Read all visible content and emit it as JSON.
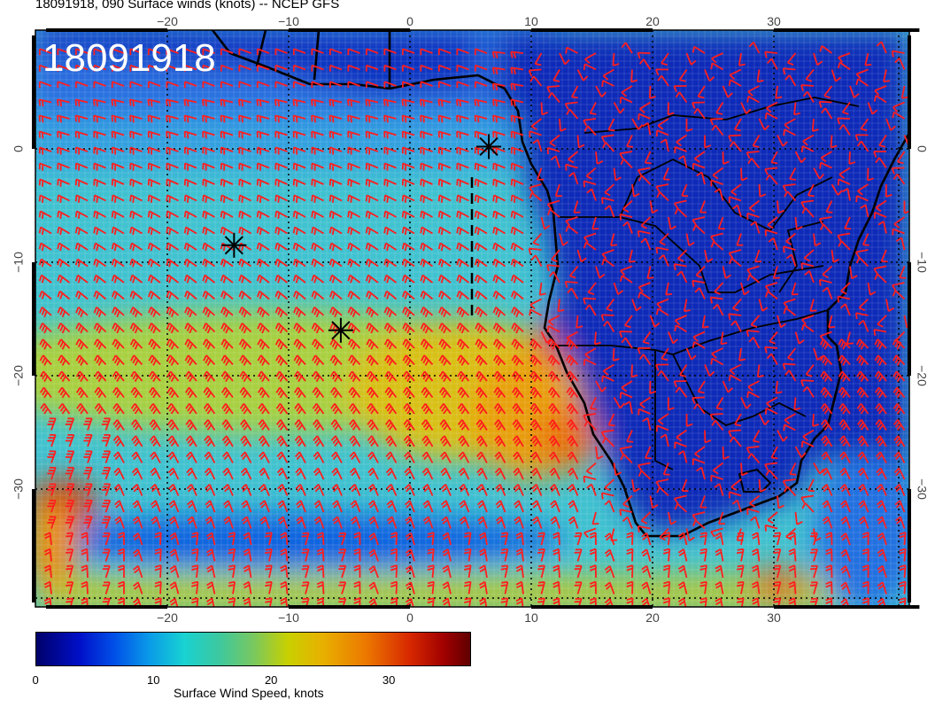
{
  "title": "18091918, 090 Surface winds (knots) -- NCEP GFS",
  "stamp": "18091918",
  "lon_ticks": [
    "−20",
    "−10",
    "0",
    "10",
    "20",
    "30"
  ],
  "lat_ticks": [
    "0",
    "−10",
    "−20",
    "−30"
  ],
  "colorbar": {
    "label": "Surface Wind Speed, knots",
    "ticks": [
      "0",
      "10",
      "20",
      "30"
    ],
    "range": [
      0,
      37
    ]
  },
  "map_extent": {
    "lon": [
      -30,
      42
    ],
    "lat": [
      -40,
      10
    ]
  },
  "markers": [
    {
      "name": "storm-marker-1",
      "lon": 6.5,
      "lat": 0.2
    },
    {
      "name": "storm-marker-2",
      "lon": -14.5,
      "lat": -8.5
    },
    {
      "name": "storm-marker-3",
      "lon": -5.7,
      "lat": -16
    }
  ],
  "colors": {
    "wind_barb": "#ff1e1e",
    "coastline": "#000000"
  }
}
